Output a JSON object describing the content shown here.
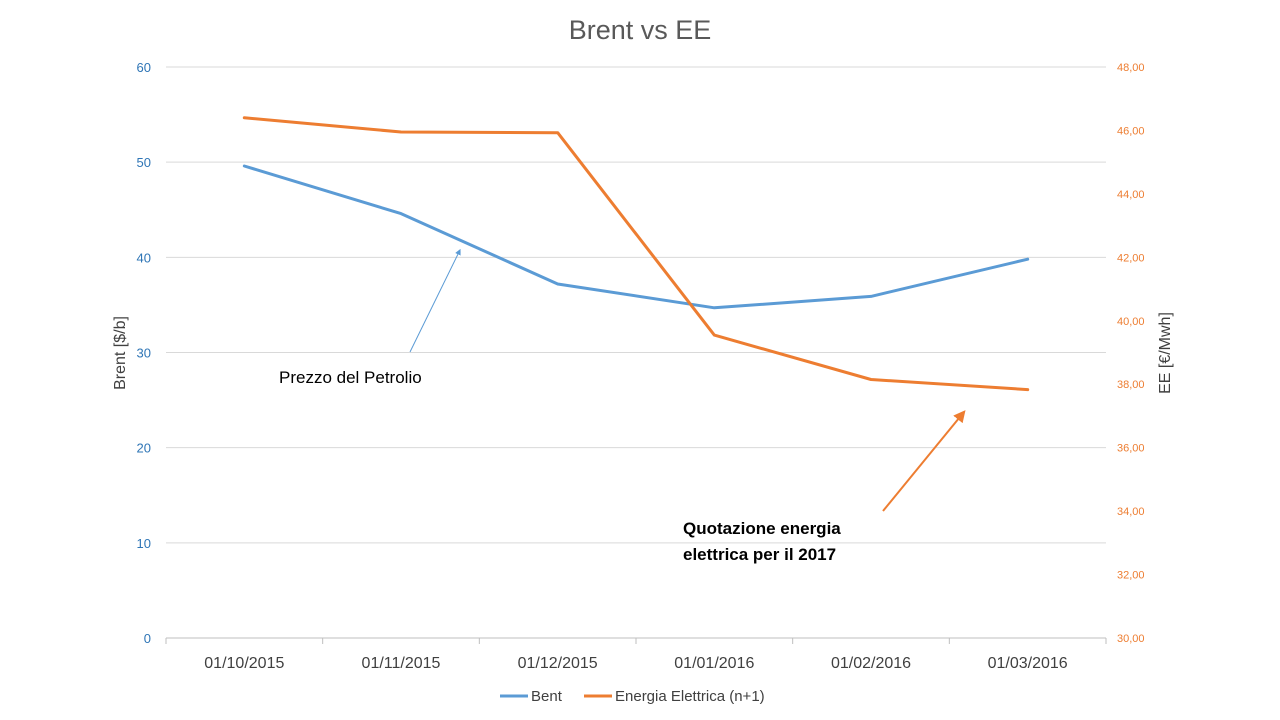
{
  "chart_data": {
    "type": "line",
    "title": "Brent vs EE",
    "categories": [
      "01/10/2015",
      "01/11/2015",
      "01/12/2015",
      "01/01/2016",
      "01/02/2016",
      "01/03/2016"
    ],
    "series": [
      {
        "name": "Bent",
        "axis": "left",
        "color": "#5b9bd5",
        "values": [
          49.6,
          44.6,
          37.2,
          34.7,
          35.9,
          39.8
        ]
      },
      {
        "name": "Energia Elettrica (n+1)",
        "axis": "right",
        "color": "#ed7d31",
        "values": [
          46.4,
          45.95,
          45.93,
          39.55,
          38.15,
          37.83
        ]
      }
    ],
    "y_left": {
      "label": "Brent [$/b]",
      "min": 0,
      "max": 60,
      "ticks": [
        "0",
        "10",
        "20",
        "30",
        "40",
        "50",
        "60"
      ],
      "color": "#2e75b6"
    },
    "y_right": {
      "label": "EE  [€/Mwh]",
      "min": 30,
      "max": 48,
      "ticks": [
        "30,00",
        "32,00",
        "34,00",
        "36,00",
        "38,00",
        "40,00",
        "42,00",
        "44,00",
        "46,00",
        "48,00"
      ],
      "color": "#ed7d31"
    },
    "grid": true,
    "legend": "bottom",
    "annotations": [
      {
        "text": [
          "Prezzo del Petrolio"
        ],
        "target_series": "Bent",
        "color": "#5b9bd5"
      },
      {
        "text": [
          "Quotazione  energia",
          "elettrica per il 2017"
        ],
        "target_series": "Energia Elettrica (n+1)",
        "color": "#ed7d31",
        "bold": true
      }
    ]
  }
}
